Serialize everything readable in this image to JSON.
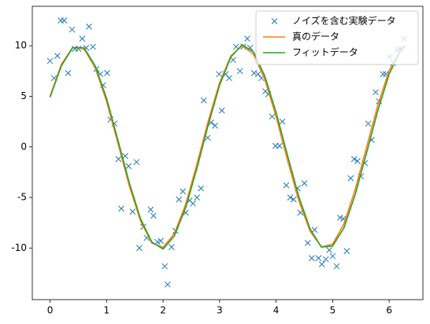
{
  "chart_data": {
    "type": "line",
    "xlim": [
      -0.314,
      6.597
    ],
    "ylim": [
      -15.1,
      13.9
    ],
    "xticks": [
      0,
      1,
      2,
      3,
      4,
      5,
      6
    ],
    "yticks": [
      -10,
      -5,
      0,
      5,
      10
    ],
    "legend": "upper right",
    "series": [
      {
        "name": "ノイズを含む実験データ",
        "color": "#1f77b4",
        "marker": "x",
        "x": [
          0,
          0.07,
          0.13,
          0.19,
          0.25,
          0.32,
          0.39,
          0.44,
          0.5,
          0.57,
          0.64,
          0.69,
          0.76,
          0.82,
          0.89,
          0.94,
          1.01,
          1.07,
          1.14,
          1.21,
          1.26,
          1.33,
          1.39,
          1.46,
          1.53,
          1.58,
          1.65,
          1.71,
          1.78,
          1.83,
          1.9,
          1.96,
          2.03,
          2.08,
          2.15,
          2.22,
          2.28,
          2.35,
          2.4,
          2.47,
          2.53,
          2.6,
          2.67,
          2.72,
          2.79,
          2.85,
          2.92,
          2.99,
          3.04,
          3.11,
          3.17,
          3.24,
          3.29,
          3.36,
          3.42,
          3.49,
          3.54,
          3.61,
          3.68,
          3.74,
          3.81,
          3.86,
          3.93,
          3.99,
          4.06,
          4.11,
          4.18,
          4.25,
          4.31,
          4.38,
          4.43,
          4.5,
          4.56,
          4.63,
          4.68,
          4.75,
          4.81,
          4.88,
          4.94,
          5.0,
          5.07,
          5.13,
          5.19,
          5.25,
          5.32,
          5.38,
          5.44,
          5.5,
          5.57,
          5.63,
          5.69,
          5.76,
          5.82,
          5.89,
          5.94,
          6.01,
          6.07,
          6.14,
          6.19,
          6.26
        ],
        "values": [
          8.5,
          6.8,
          9.0,
          12.5,
          12.5,
          7.3,
          11.6,
          9.7,
          9.7,
          10.7,
          9.8,
          11.9,
          9.9,
          7.7,
          7.2,
          6.1,
          7.3,
          2.7,
          2.3,
          -1.2,
          -6.1,
          -0.9,
          -1.9,
          -6.4,
          -1.5,
          -10.0,
          -7.9,
          -9.0,
          -6.2,
          -6.8,
          -9.4,
          -9.3,
          -11.8,
          -13.6,
          -9.9,
          -8.3,
          -5.2,
          -4.4,
          -6.5,
          -5.3,
          -5.6,
          -5.0,
          -4.1,
          4.6,
          0.9,
          2.4,
          2.1,
          7.2,
          3.6,
          7.2,
          6.8,
          8.6,
          9.9,
          7.5,
          9.9,
          10.7,
          9.8,
          7.3,
          7.2,
          6.8,
          5.5,
          5.2,
          3.0,
          0.1,
          0.1,
          2.5,
          -3.8,
          -5.0,
          -5.2,
          -4.1,
          -6.5,
          -3.6,
          -9.5,
          -11.0,
          -8.2,
          -11.0,
          -11.6,
          -11.1,
          -10.2,
          -10.8,
          -11.8,
          -7.0,
          -7.1,
          -10.3,
          -3.1,
          -1.2,
          -1.4,
          -2.9,
          -1.6,
          2.3,
          0.7,
          5.4,
          4.5,
          7.2,
          7.2,
          8.9,
          8.3,
          9.6,
          9.7,
          10.7
        ]
      },
      {
        "name": "真のデータ",
        "color": "#ff7f0e",
        "x": [
          0,
          0.2,
          0.4,
          0.6,
          0.8,
          1.0,
          1.2,
          1.4,
          1.6,
          1.8,
          2.0,
          2.2,
          2.4,
          2.6,
          2.8,
          3.0,
          3.2,
          3.4,
          3.6,
          3.8,
          4.0,
          4.2,
          4.4,
          4.6,
          4.8,
          5.0,
          5.2,
          5.4,
          5.6,
          5.8,
          6.0,
          6.2,
          6.28
        ],
        "values": [
          5.0,
          8.16,
          9.83,
          9.7,
          7.81,
          4.5,
          0.38,
          -3.82,
          -7.31,
          -9.5,
          -9.94,
          -8.56,
          -5.67,
          -1.68,
          2.58,
          6.37,
          9.0,
          10.0,
          9.17,
          6.67,
          2.97,
          -1.29,
          -5.3,
          -8.34,
          -9.88,
          -9.61,
          -7.6,
          -4.19,
          -0.02,
          4.15,
          7.56,
          9.6,
          9.94
        ]
      },
      {
        "name": "フィットデータ",
        "color": "#2ca02c",
        "x": [
          0,
          0.2,
          0.4,
          0.6,
          0.8,
          1.0,
          1.2,
          1.4,
          1.6,
          1.8,
          2.0,
          2.2,
          2.4,
          2.6,
          2.8,
          3.0,
          3.2,
          3.4,
          3.6,
          3.8,
          4.0,
          4.2,
          4.4,
          4.6,
          4.8,
          5.0,
          5.2,
          5.4,
          5.6,
          5.8,
          6.0,
          6.2,
          6.28
        ],
        "values": [
          4.9,
          8.0,
          9.8,
          9.8,
          8.0,
          4.8,
          0.7,
          -3.5,
          -7.1,
          -9.4,
          -10.1,
          -8.8,
          -6.0,
          -2.1,
          2.2,
          6.1,
          8.9,
          10.1,
          9.4,
          7.0,
          3.4,
          -0.8,
          -4.9,
          -8.1,
          -9.9,
          -9.8,
          -8.0,
          -4.7,
          -0.6,
          3.6,
          7.2,
          9.5,
          10.0
        ]
      }
    ]
  }
}
